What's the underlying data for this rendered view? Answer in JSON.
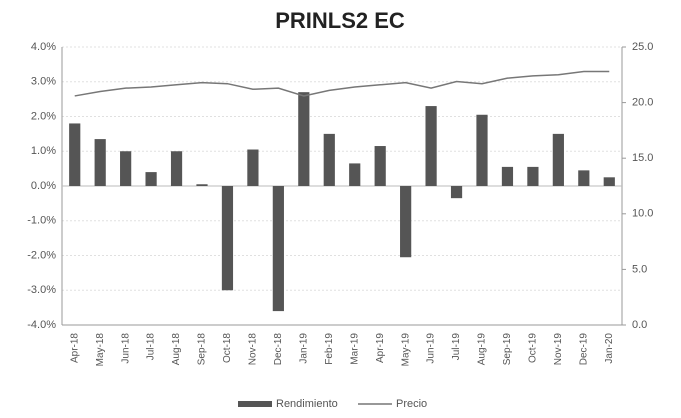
{
  "chart_data": {
    "type": "bar-line",
    "title": "PRINLS2 EC",
    "categories": [
      "Apr-18",
      "May-18",
      "Jun-18",
      "Jul-18",
      "Aug-18",
      "Sep-18",
      "Oct-18",
      "Nov-18",
      "Dec-18",
      "Jan-19",
      "Feb-19",
      "Mar-19",
      "Apr-19",
      "May-19",
      "Jun-19",
      "Jul-19",
      "Aug-19",
      "Sep-19",
      "Oct-19",
      "Nov-19",
      "Dec-19",
      "Jan-20"
    ],
    "series": [
      {
        "name": "Rendimiento",
        "color": "#555555",
        "type": "bar",
        "values": [
          1.8,
          1.35,
          1.0,
          0.4,
          1.0,
          0.05,
          -3.0,
          1.05,
          -3.6,
          2.7,
          1.5,
          0.65,
          1.15,
          -2.05,
          2.3,
          -0.35,
          2.05,
          0.55,
          0.55,
          1.5,
          0.45,
          0.25
        ]
      },
      {
        "name": "Precio",
        "color": "#777777",
        "type": "line",
        "axis": "y2",
        "values": [
          20.6,
          21.0,
          21.3,
          21.4,
          21.6,
          21.8,
          21.7,
          21.2,
          21.3,
          20.6,
          21.1,
          21.4,
          21.6,
          21.8,
          21.3,
          21.9,
          21.7,
          22.2,
          22.4,
          22.5,
          22.8,
          22.8
        ]
      }
    ],
    "ylim": [
      -4,
      4
    ],
    "yticks": [
      {
        "value": -4,
        "label": "-4.0%"
      },
      {
        "value": -3,
        "label": "-3.0%"
      },
      {
        "value": -2,
        "label": "-2.0%"
      },
      {
        "value": -1,
        "label": "-1.0%"
      },
      {
        "value": 0,
        "label": "0.0%"
      },
      {
        "value": 1,
        "label": "1.0%"
      },
      {
        "value": 2,
        "label": "2.0%"
      },
      {
        "value": 3,
        "label": "3.0%"
      },
      {
        "value": 4,
        "label": "4.0%"
      }
    ],
    "y2lim": [
      0,
      25
    ],
    "y2ticks": [
      {
        "value": 0,
        "label": "0.0"
      },
      {
        "value": 5,
        "label": "5.0"
      },
      {
        "value": 10,
        "label": "10.0"
      },
      {
        "value": 15,
        "label": "15.0"
      },
      {
        "value": 20,
        "label": "20.0"
      },
      {
        "value": 25,
        "label": "25.0"
      }
    ],
    "grid": true,
    "legend": "bottom"
  }
}
